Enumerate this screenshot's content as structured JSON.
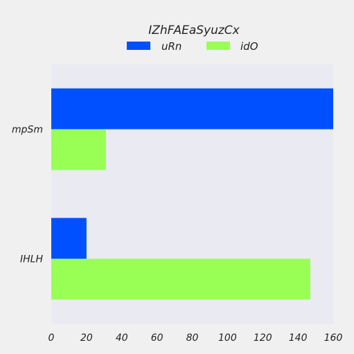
{
  "chart_data": {
    "type": "bar",
    "orientation": "horizontal",
    "title": "IZhFAEaSyuzCx",
    "xlabel": "",
    "ylabel": "",
    "categories": [
      "mpSm",
      "IHLH"
    ],
    "series": [
      {
        "name": "uRn",
        "values": [
          160,
          20
        ],
        "color": "#0050ff"
      },
      {
        "name": "idO",
        "values": [
          31,
          147
        ],
        "color": "#99ff55"
      }
    ],
    "xlim": [
      0,
      160
    ],
    "xticks": [
      "0",
      "20",
      "40",
      "60",
      "80",
      "100",
      "120",
      "140",
      "160"
    ],
    "grid": false,
    "legend_position": "top-center"
  },
  "colors": {
    "page_background": "#f0f0f0",
    "plot_background": "#eaeaf2",
    "text": "#222222"
  }
}
